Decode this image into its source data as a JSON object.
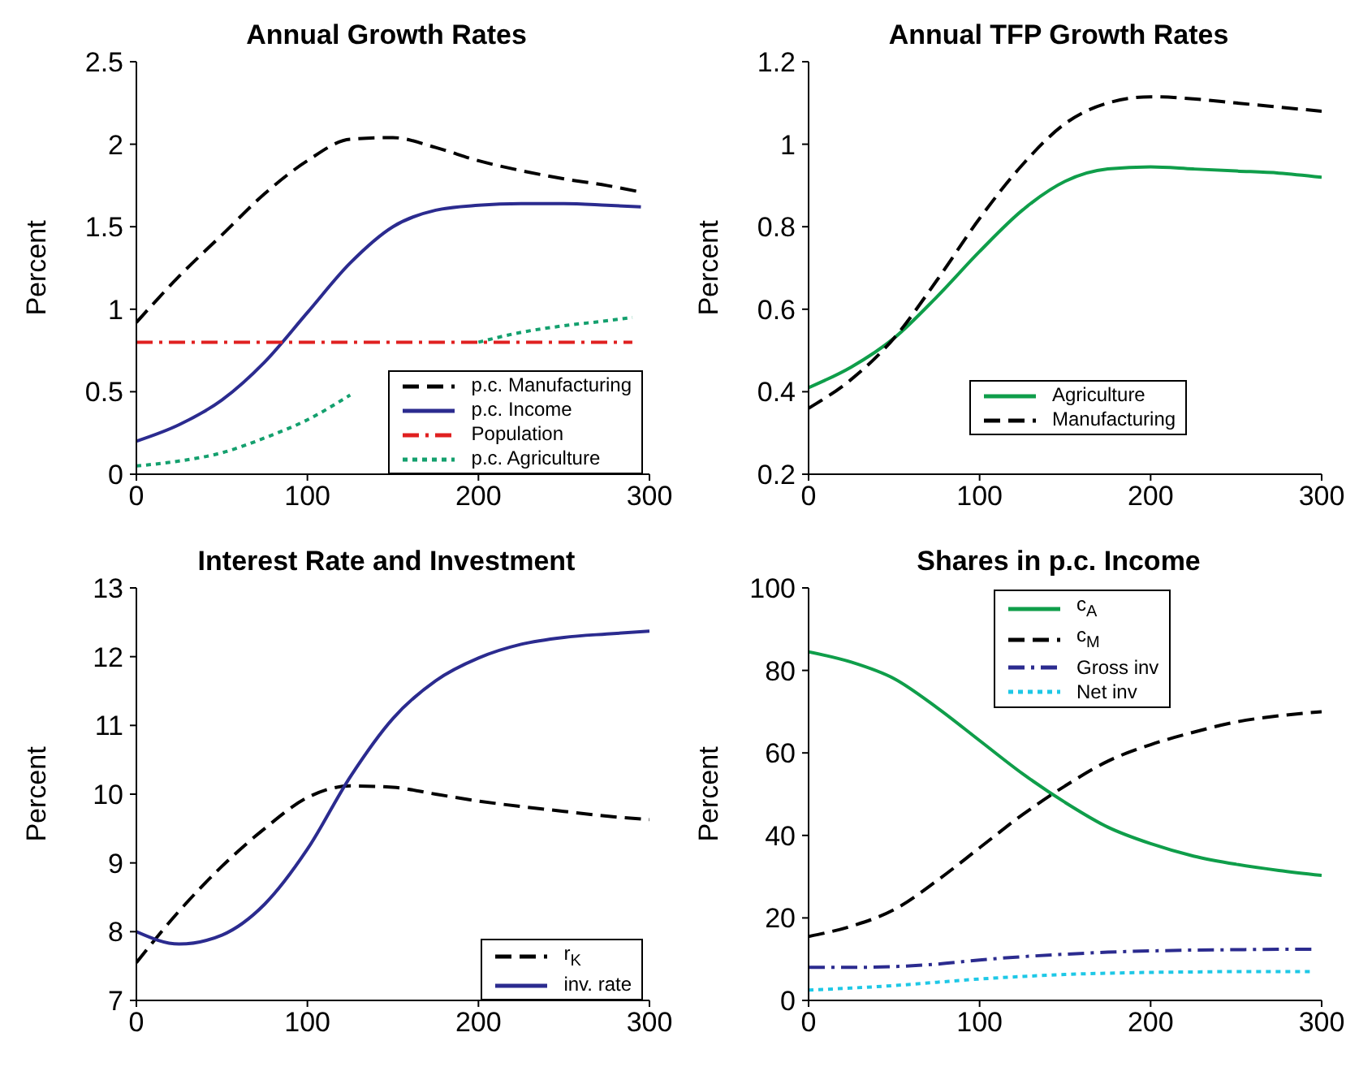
{
  "chart_data": [
    {
      "type": "line",
      "title": "Annual Growth Rates",
      "ylabel": "Percent",
      "xlim": [
        0,
        300
      ],
      "xticks": [
        0,
        100,
        200,
        300
      ],
      "ylim": [
        0,
        2.5
      ],
      "yticks": [
        0,
        0.5,
        1,
        1.5,
        2,
        2.5
      ],
      "grid": false,
      "legend": "bottom right",
      "series": [
        {
          "name": "p.c. Manufacturing",
          "color": "#000000",
          "line_style": "dashed",
          "x": [
            0,
            25,
            50,
            75,
            100,
            125,
            150,
            175,
            200,
            225,
            250,
            275,
            295
          ],
          "values": [
            0.92,
            1.2,
            1.45,
            1.7,
            1.9,
            2.03,
            2.04,
            1.98,
            1.9,
            1.84,
            1.79,
            1.75,
            1.71
          ]
        },
        {
          "name": "p.c. Income",
          "color": "#2b2b8f",
          "line_style": "solid",
          "x": [
            0,
            25,
            50,
            75,
            100,
            125,
            150,
            175,
            200,
            225,
            250,
            275,
            295
          ],
          "values": [
            0.2,
            0.3,
            0.45,
            0.68,
            0.98,
            1.28,
            1.5,
            1.6,
            1.63,
            1.64,
            1.64,
            1.63,
            1.62
          ]
        },
        {
          "name": "Population",
          "color": "#e02020",
          "line_style": "dashdot",
          "x": [
            0,
            290
          ],
          "values": [
            0.8,
            0.8
          ]
        },
        {
          "name": "p.c. Agriculture",
          "color": "#14a06e",
          "line_style": "dotted",
          "x": [
            0,
            25,
            50,
            75,
            100,
            125,
            150,
            175,
            200,
            225,
            250,
            275,
            290
          ],
          "values": [
            0.05,
            0.08,
            0.13,
            0.22,
            0.33,
            0.48,
            null,
            null,
            0.8,
            0.86,
            0.9,
            0.93,
            0.95
          ]
        }
      ]
    },
    {
      "type": "line",
      "title": "Annual TFP Growth Rates",
      "ylabel": "Percent",
      "xlim": [
        0,
        300
      ],
      "xticks": [
        0,
        100,
        200,
        300
      ],
      "ylim": [
        0.2,
        1.2
      ],
      "yticks": [
        0.2,
        0.4,
        0.6,
        0.8,
        1,
        1.2
      ],
      "grid": false,
      "legend": "bottom",
      "series": [
        {
          "name": "Agriculture",
          "color": "#0f9e4a",
          "line_style": "solid",
          "x": [
            0,
            25,
            50,
            75,
            100,
            125,
            150,
            175,
            200,
            225,
            250,
            275,
            300
          ],
          "values": [
            0.41,
            0.46,
            0.53,
            0.63,
            0.74,
            0.84,
            0.91,
            0.94,
            0.945,
            0.94,
            0.935,
            0.93,
            0.92
          ]
        },
        {
          "name": "Manufacturing",
          "color": "#000000",
          "line_style": "dashed",
          "x": [
            0,
            25,
            50,
            75,
            100,
            125,
            150,
            175,
            200,
            225,
            250,
            275,
            300
          ],
          "values": [
            0.36,
            0.43,
            0.53,
            0.67,
            0.82,
            0.95,
            1.05,
            1.1,
            1.115,
            1.11,
            1.1,
            1.09,
            1.08
          ]
        }
      ]
    },
    {
      "type": "line",
      "title": "Interest Rate and Investment",
      "ylabel": "Percent",
      "xlim": [
        0,
        300
      ],
      "xticks": [
        0,
        100,
        200,
        300
      ],
      "ylim": [
        7,
        13
      ],
      "yticks": [
        7,
        8,
        9,
        10,
        11,
        12,
        13
      ],
      "grid": false,
      "legend": "bottom right",
      "series": [
        {
          "name": "r$_{K}$",
          "color": "#000000",
          "line_style": "dashed",
          "x": [
            0,
            25,
            50,
            75,
            100,
            125,
            150,
            175,
            200,
            225,
            250,
            275,
            300
          ],
          "values": [
            7.55,
            8.3,
            8.95,
            9.5,
            9.95,
            10.12,
            10.1,
            10.0,
            9.9,
            9.82,
            9.75,
            9.68,
            9.63
          ]
        },
        {
          "name": "inv. rate",
          "color": "#2b2b8f",
          "line_style": "solid",
          "x": [
            0,
            25,
            50,
            75,
            100,
            125,
            150,
            175,
            200,
            225,
            250,
            275,
            300
          ],
          "values": [
            8.0,
            7.82,
            7.95,
            8.4,
            9.2,
            10.25,
            11.1,
            11.65,
            11.98,
            12.18,
            12.28,
            12.33,
            12.37
          ]
        }
      ]
    },
    {
      "type": "line",
      "title": "Shares in p.c. Income",
      "ylabel": "Percent",
      "xlim": [
        0,
        300
      ],
      "xticks": [
        0,
        100,
        200,
        300
      ],
      "ylim": [
        0,
        100
      ],
      "yticks": [
        0,
        20,
        40,
        60,
        80,
        100
      ],
      "grid": false,
      "legend": "top",
      "series": [
        {
          "name": "c$_{A}$",
          "color": "#0f9e4a",
          "line_style": "solid",
          "x": [
            0,
            25,
            50,
            75,
            100,
            125,
            150,
            175,
            200,
            225,
            250,
            275,
            300
          ],
          "values": [
            84.5,
            82,
            78,
            71,
            63,
            55,
            48,
            42,
            38,
            35,
            33,
            31.5,
            30.3
          ]
        },
        {
          "name": "c$_{M}$",
          "color": "#000000",
          "line_style": "dashed",
          "x": [
            0,
            25,
            50,
            75,
            100,
            125,
            150,
            175,
            200,
            225,
            250,
            275,
            300
          ],
          "values": [
            15.5,
            18,
            22,
            29,
            37,
            45,
            52,
            58,
            62,
            65,
            67.5,
            69,
            70
          ]
        },
        {
          "name": "Gross inv",
          "color": "#2b2b8f",
          "line_style": "dashdot",
          "x": [
            0,
            25,
            50,
            75,
            100,
            125,
            150,
            175,
            200,
            225,
            250,
            275,
            295
          ],
          "values": [
            8,
            8,
            8.2,
            8.8,
            9.8,
            10.6,
            11.2,
            11.7,
            12,
            12.2,
            12.3,
            12.4,
            12.4
          ]
        },
        {
          "name": "Net inv",
          "color": "#1ec8e6",
          "line_style": "dotted",
          "x": [
            0,
            25,
            50,
            75,
            100,
            125,
            150,
            175,
            200,
            225,
            250,
            275,
            295
          ],
          "values": [
            2.5,
            3,
            3.6,
            4.4,
            5.2,
            5.8,
            6.3,
            6.6,
            6.8,
            6.9,
            7,
            7,
            7
          ]
        }
      ]
    }
  ]
}
